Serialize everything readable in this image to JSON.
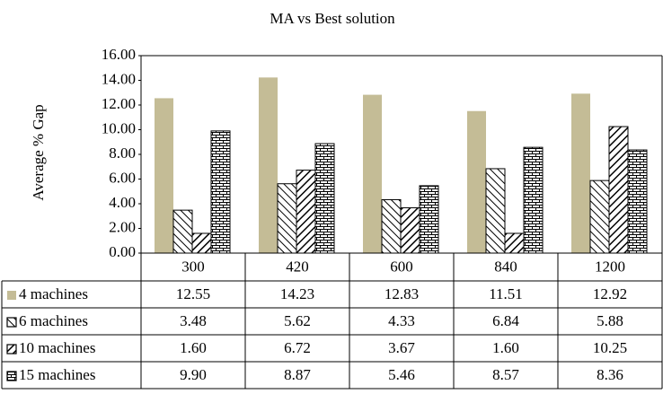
{
  "chart_data": {
    "type": "bar",
    "title": "MA vs Best solution",
    "y_label": "Average % Gap",
    "categories": [
      "300",
      "420",
      "600",
      "840",
      "1200"
    ],
    "series": [
      {
        "name": "4 machines",
        "color": "#c4bc96",
        "pattern": "solid",
        "values": [
          12.55,
          14.23,
          12.83,
          11.51,
          12.92
        ],
        "value_labels": [
          "12.55",
          "14.23",
          "12.83",
          "11.51",
          "12.92"
        ]
      },
      {
        "name": "6 machines",
        "color": "#000000",
        "pattern": "backslash",
        "values": [
          3.48,
          5.62,
          4.33,
          6.84,
          5.88
        ],
        "value_labels": [
          "3.48",
          "5.62",
          "4.33",
          "6.84",
          "5.88"
        ]
      },
      {
        "name": "10 machines",
        "color": "#000000",
        "pattern": "slash",
        "values": [
          1.6,
          6.72,
          3.67,
          1.6,
          10.25
        ],
        "value_labels": [
          "1.60",
          "6.72",
          "3.67",
          "1.60",
          "10.25"
        ]
      },
      {
        "name": "15 machines",
        "color": "#000000",
        "pattern": "brick",
        "values": [
          9.9,
          8.87,
          5.46,
          8.57,
          8.36
        ],
        "value_labels": [
          "9.90",
          "8.87",
          "5.46",
          "8.57",
          "8.36"
        ]
      }
    ],
    "ylim": [
      0,
      16
    ],
    "yticks": [
      {
        "value": 0,
        "label": "0.00"
      },
      {
        "value": 2,
        "label": "2.00"
      },
      {
        "value": 4,
        "label": "4.00"
      },
      {
        "value": 6,
        "label": "6.00"
      },
      {
        "value": 8,
        "label": "8.00"
      },
      {
        "value": 10,
        "label": "10.00"
      },
      {
        "value": 12,
        "label": "12.00"
      },
      {
        "value": 14,
        "label": "14.00"
      },
      {
        "value": 16,
        "label": "16.00"
      }
    ],
    "data_table": true
  }
}
